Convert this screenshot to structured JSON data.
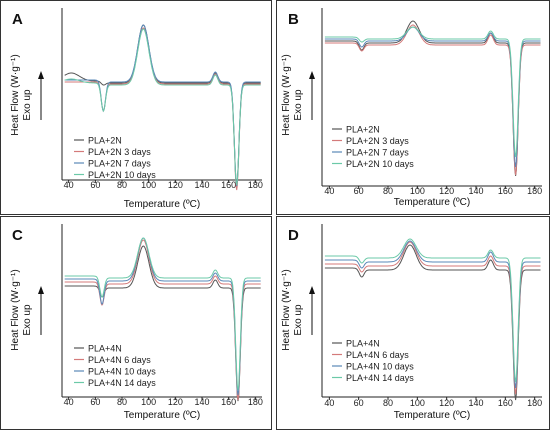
{
  "chart_data": [
    {
      "type": "line",
      "panel_label": "A",
      "xlabel": "Temperature (ºC)",
      "ylabel": "Heat Flow (W·g⁻¹)",
      "exo_label": "Exo up",
      "xlim": [
        35,
        185
      ],
      "xticks": [
        40,
        60,
        80,
        100,
        120,
        140,
        160,
        180
      ],
      "legend_position": "bottom-left",
      "grid": false,
      "series": [
        {
          "name": "PLA+2N",
          "color": "#555555"
        },
        {
          "name": "PLA+2N 3 days",
          "color": "#d47a7a"
        },
        {
          "name": "PLA+2N 7 days",
          "color": "#5a88b8"
        },
        {
          "name": "PLA+2N 10 days",
          "color": "#6bc9a8"
        }
      ]
    },
    {
      "type": "line",
      "panel_label": "B",
      "xlabel": "Temperature (ºC)",
      "ylabel": "Heat Flow (W·g⁻¹)",
      "exo_label": "Exo up",
      "xlim": [
        35,
        185
      ],
      "xticks": [
        40,
        60,
        80,
        100,
        120,
        140,
        160,
        180
      ],
      "legend_position": "bottom-left",
      "grid": false,
      "series": [
        {
          "name": "PLA+2N",
          "color": "#555555"
        },
        {
          "name": "PLA+2N 3 days",
          "color": "#d47a7a"
        },
        {
          "name": "PLA+2N 7 days",
          "color": "#5a88b8"
        },
        {
          "name": "PLA+2N 10 days",
          "color": "#6bc9a8"
        }
      ]
    },
    {
      "type": "line",
      "panel_label": "C",
      "xlabel": "Temperature (ºC)",
      "ylabel": "Heat Flow (W·g⁻¹)",
      "exo_label": "Exo up",
      "xlim": [
        35,
        185
      ],
      "xticks": [
        40,
        60,
        80,
        100,
        120,
        140,
        160,
        180
      ],
      "legend_position": "bottom-left",
      "grid": false,
      "series": [
        {
          "name": "PLA+4N",
          "color": "#555555"
        },
        {
          "name": "PLA+4N 6 days",
          "color": "#d47a7a"
        },
        {
          "name": "PLA+4N 10 days",
          "color": "#5a88b8"
        },
        {
          "name": "PLA+4N 14 days",
          "color": "#6bc9a8"
        }
      ]
    },
    {
      "type": "line",
      "panel_label": "D",
      "xlabel": "Temperature (ºC)",
      "ylabel": "Heat Flow (W·g⁻¹)",
      "exo_label": "Exo up",
      "xlim": [
        35,
        185
      ],
      "xticks": [
        40,
        60,
        80,
        100,
        120,
        140,
        160,
        180
      ],
      "legend_position": "bottom-left",
      "grid": false,
      "series": [
        {
          "name": "PLA+4N",
          "color": "#555555"
        },
        {
          "name": "PLA+4N 6 days",
          "color": "#d47a7a"
        },
        {
          "name": "PLA+4N 10 days",
          "color": "#5a88b8"
        },
        {
          "name": "PLA+4N 14 days",
          "color": "#6bc9a8"
        }
      ]
    }
  ]
}
